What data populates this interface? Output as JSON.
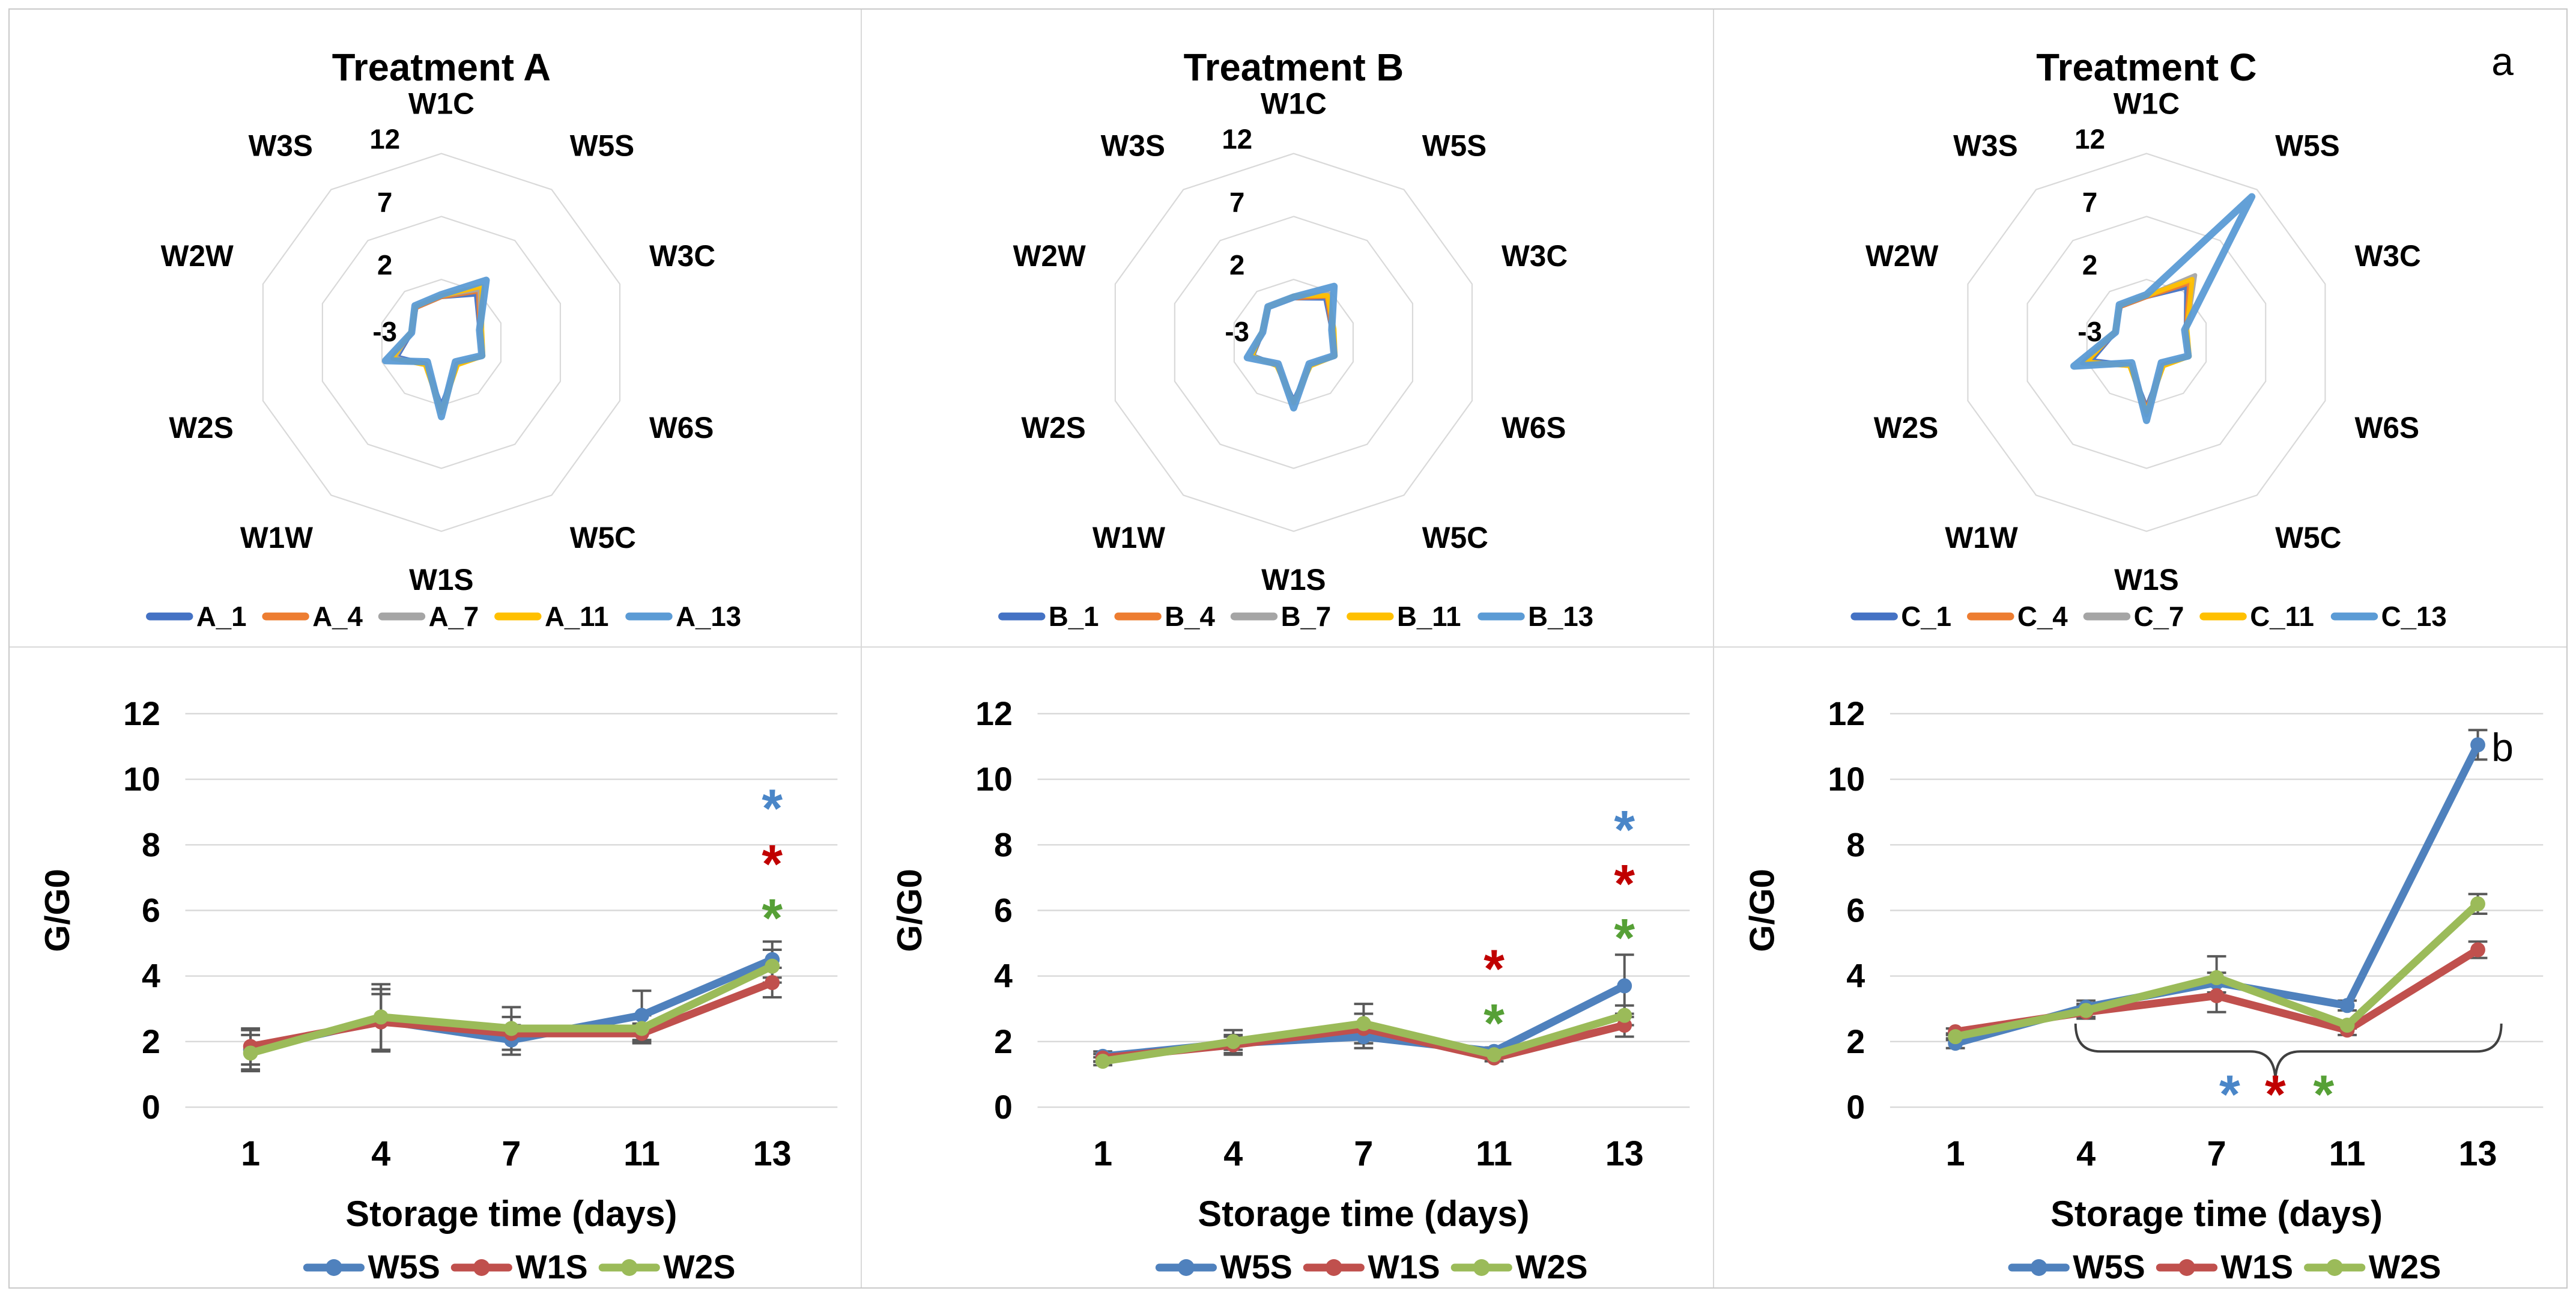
{
  "figure": {
    "panel_label_a": "a",
    "panel_label_b": "b",
    "asterisk_char": "*"
  },
  "palette": {
    "radar_series": [
      "#4472C4",
      "#ED7D31",
      "#A5A5A5",
      "#FFC000",
      "#5B9BD5"
    ],
    "line_series": {
      "W5S": "#4F81BD",
      "W1S": "#C0504D",
      "W2S": "#9BBB59"
    },
    "asterisk": {
      "blue": "#4A86C8",
      "red": "#C00000",
      "green": "#56A036"
    },
    "grid": "#D9D9D9",
    "error_bar": "#595959",
    "brace": "#404040",
    "text": "#000000",
    "panel_border": "#C9C9C9"
  },
  "chart_data": [
    {
      "type": "radar",
      "title": "Treatment A",
      "axes": [
        "W1C",
        "W5S",
        "W3C",
        "W6S",
        "W5C",
        "W1S",
        "W1W",
        "W2S",
        "W2W",
        "W3S"
      ],
      "r_min": -3,
      "r_max": 12,
      "ring_values": [
        2,
        7,
        12
      ],
      "tick_labels": [
        12,
        7,
        2,
        -3
      ],
      "legend_position": "bottom",
      "series": [
        {
          "name": "A_1",
          "color": "#4472C4",
          "width": 7,
          "values": [
            0.6,
            1.7,
            0.2,
            0.4,
            -0.9,
            2.0,
            -0.9,
            0.7,
            -0.5,
            0.4
          ]
        },
        {
          "name": "A_4",
          "color": "#ED7D31",
          "width": 7,
          "values": [
            0.6,
            2.0,
            0.2,
            0.4,
            -0.9,
            2.6,
            -0.9,
            1.0,
            -0.5,
            0.4
          ]
        },
        {
          "name": "A_7",
          "color": "#A5A5A5",
          "width": 7,
          "values": [
            0.7,
            2.2,
            0.3,
            0.5,
            -0.8,
            2.3,
            -0.8,
            0.9,
            -0.4,
            0.5
          ]
        },
        {
          "name": "A_11",
          "color": "#FFC000",
          "width": 8,
          "values": [
            0.7,
            2.5,
            0.4,
            0.5,
            -0.8,
            2.5,
            -0.8,
            1.1,
            -0.4,
            0.5
          ]
        },
        {
          "name": "A_13",
          "color": "#5B9BD5",
          "width": 12,
          "values": [
            0.8,
            3.1,
            0.2,
            0.4,
            -1.1,
            2.9,
            -1.1,
            1.7,
            -0.5,
            0.6
          ]
        }
      ]
    },
    {
      "type": "radar",
      "title": "Treatment B",
      "axes": [
        "W1C",
        "W5S",
        "W3C",
        "W6S",
        "W5C",
        "W1S",
        "W1W",
        "W2S",
        "W2W",
        "W3S"
      ],
      "r_min": -3,
      "r_max": 12,
      "ring_values": [
        2,
        7,
        12
      ],
      "tick_labels": [
        12,
        7,
        2,
        -3
      ],
      "legend_position": "bottom",
      "series": [
        {
          "name": "B_1",
          "color": "#4472C4",
          "width": 7,
          "values": [
            0.5,
            1.3,
            0.2,
            0.4,
            -0.8,
            1.6,
            -0.8,
            0.4,
            -0.4,
            0.4
          ]
        },
        {
          "name": "B_4",
          "color": "#ED7D31",
          "width": 7,
          "values": [
            0.5,
            1.5,
            0.2,
            0.4,
            -0.8,
            1.8,
            -0.8,
            0.5,
            -0.4,
            0.4
          ]
        },
        {
          "name": "B_7",
          "color": "#A5A5A5",
          "width": 7,
          "values": [
            0.6,
            1.8,
            0.3,
            0.5,
            -0.7,
            1.7,
            -0.7,
            0.5,
            -0.3,
            0.4
          ]
        },
        {
          "name": "B_11",
          "color": "#FFC000",
          "width": 8,
          "values": [
            0.7,
            1.6,
            0.4,
            0.5,
            -0.7,
            1.8,
            -0.7,
            0.5,
            -0.3,
            0.5
          ]
        },
        {
          "name": "B_13",
          "color": "#5B9BD5",
          "width": 12,
          "values": [
            0.6,
            2.5,
            0.2,
            0.4,
            -0.9,
            2.2,
            -0.9,
            0.9,
            -0.4,
            0.5
          ]
        }
      ]
    },
    {
      "type": "radar",
      "title": "Treatment C",
      "axes": [
        "W1C",
        "W5S",
        "W3C",
        "W6S",
        "W5C",
        "W1S",
        "W1W",
        "W2S",
        "W2W",
        "W3S"
      ],
      "r_min": -3,
      "r_max": 12,
      "ring_values": [
        2,
        7,
        12
      ],
      "tick_labels": [
        12,
        7,
        2,
        -3
      ],
      "legend_position": "bottom",
      "series": [
        {
          "name": "C_1",
          "color": "#4472C4",
          "width": 7,
          "values": [
            0.6,
            2.4,
            0.3,
            0.5,
            -0.8,
            2.1,
            -0.8,
            1.6,
            -0.4,
            0.5
          ]
        },
        {
          "name": "C_4",
          "color": "#ED7D31",
          "width": 7,
          "values": [
            0.6,
            2.8,
            0.3,
            0.5,
            -0.8,
            2.3,
            -0.8,
            2.0,
            -0.4,
            0.5
          ]
        },
        {
          "name": "C_7",
          "color": "#A5A5A5",
          "width": 7,
          "values": [
            0.7,
            3.6,
            0.4,
            0.6,
            -0.7,
            2.8,
            -0.7,
            2.4,
            -0.3,
            0.6
          ]
        },
        {
          "name": "C_11",
          "color": "#FFC000",
          "width": 8,
          "values": [
            0.7,
            3.2,
            0.4,
            0.6,
            -0.7,
            2.5,
            -0.7,
            2.0,
            -0.3,
            0.6
          ]
        },
        {
          "name": "C_13",
          "color": "#5B9BD5",
          "width": 12,
          "values": [
            0.8,
            11.3,
            0.2,
            0.5,
            -1.0,
            3.2,
            -1.0,
            3.1,
            -0.4,
            0.7
          ]
        }
      ]
    },
    {
      "type": "line",
      "panel": "Treatment A",
      "ylabel": "G/G0",
      "xlabel": "Storage time (days)",
      "categories": [
        "1",
        "4",
        "7",
        "11",
        "13"
      ],
      "ylim": [
        0,
        12
      ],
      "yticks": [
        0,
        2,
        4,
        6,
        8,
        10,
        12
      ],
      "legend_position": "bottom",
      "series": [
        {
          "name": "W5S",
          "color": "#4F81BD",
          "values": [
            1.75,
            2.65,
            2.05,
            2.8,
            4.5
          ],
          "errors": [
            0.6,
            0.95,
            0.45,
            0.75,
            0.55
          ]
        },
        {
          "name": "W1S",
          "color": "#C0504D",
          "values": [
            1.85,
            2.6,
            2.25,
            2.25,
            3.8
          ],
          "errors": [
            0.55,
            0.85,
            0.5,
            0.3,
            0.45
          ]
        },
        {
          "name": "W2S",
          "color": "#9BBB59",
          "values": [
            1.65,
            2.75,
            2.4,
            2.4,
            4.3
          ],
          "errors": [
            0.55,
            1.0,
            0.65,
            0.4,
            0.5
          ]
        }
      ],
      "asterisks": [
        {
          "i": 4,
          "y": 9.1,
          "color": "#4A86C8"
        },
        {
          "i": 4,
          "y": 7.4,
          "color": "#C00000"
        },
        {
          "i": 4,
          "y": 5.75,
          "color": "#56A036"
        }
      ],
      "brace": null
    },
    {
      "type": "line",
      "panel": "Treatment B",
      "ylabel": "G/G0",
      "xlabel": "Storage time (days)",
      "categories": [
        "1",
        "4",
        "7",
        "11",
        "13"
      ],
      "ylim": [
        0,
        12
      ],
      "yticks": [
        0,
        2,
        4,
        6,
        8,
        10,
        12
      ],
      "legend_position": "bottom",
      "series": [
        {
          "name": "W5S",
          "color": "#4F81BD",
          "values": [
            1.55,
            1.95,
            2.15,
            1.7,
            3.7
          ],
          "errors": [
            0.15,
            0.2,
            0.35,
            0.12,
            0.95
          ]
        },
        {
          "name": "W1S",
          "color": "#C0504D",
          "values": [
            1.5,
            1.9,
            2.4,
            1.5,
            2.5
          ],
          "errors": [
            0.12,
            0.3,
            0.45,
            0.1,
            0.35
          ]
        },
        {
          "name": "W2S",
          "color": "#9BBB59",
          "values": [
            1.4,
            2.0,
            2.55,
            1.6,
            2.8
          ],
          "errors": [
            0.12,
            0.35,
            0.6,
            0.1,
            0.3
          ]
        }
      ],
      "asterisks": [
        {
          "i": 3,
          "y": 4.2,
          "color": "#C00000"
        },
        {
          "i": 3,
          "y": 2.55,
          "color": "#56A036"
        },
        {
          "i": 4,
          "y": 8.45,
          "color": "#4A86C8"
        },
        {
          "i": 4,
          "y": 6.8,
          "color": "#C00000"
        },
        {
          "i": 4,
          "y": 5.15,
          "color": "#56A036"
        }
      ],
      "brace": null
    },
    {
      "type": "line",
      "panel": "Treatment C",
      "ylabel": "G/G0",
      "xlabel": "Storage time (days)",
      "categories": [
        "1",
        "4",
        "7",
        "11",
        "13"
      ],
      "ylim": [
        0,
        12
      ],
      "yticks": [
        0,
        2,
        4,
        6,
        8,
        10,
        12
      ],
      "legend_position": "bottom",
      "series": [
        {
          "name": "W5S",
          "color": "#4F81BD",
          "values": [
            1.95,
            3.05,
            3.8,
            3.1,
            11.05
          ],
          "errors": [
            0.15,
            0.2,
            0.3,
            0.15,
            0.45
          ]
        },
        {
          "name": "W1S",
          "color": "#C0504D",
          "values": [
            2.3,
            2.9,
            3.4,
            2.35,
            4.8
          ],
          "errors": [
            0.1,
            0.2,
            0.5,
            0.15,
            0.25
          ]
        },
        {
          "name": "W2S",
          "color": "#9BBB59",
          "values": [
            2.15,
            2.95,
            3.95,
            2.5,
            6.2
          ],
          "errors": [
            0.1,
            0.2,
            0.65,
            0.1,
            0.3
          ]
        }
      ],
      "asterisks": [
        {
          "i": 2.1,
          "y": 0.38,
          "color": "#4A86C8"
        },
        {
          "i": 2.45,
          "y": 0.38,
          "color": "#C00000"
        },
        {
          "i": 2.82,
          "y": 0.38,
          "color": "#56A036"
        }
      ],
      "brace": {
        "i_start": 0.92,
        "i_end": 4.18,
        "y_end": 2.55,
        "y_bar": 1.7,
        "i_tip": 2.45,
        "y_tip": 0.78
      }
    }
  ]
}
